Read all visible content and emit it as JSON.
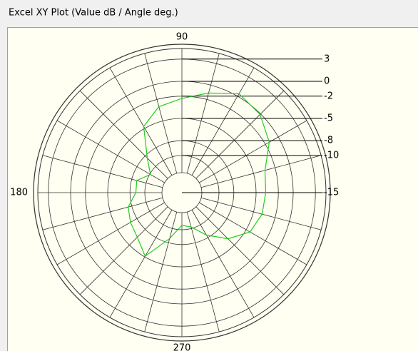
{
  "chart_data": {
    "type": "polar",
    "title": "Excel XY Plot (Value dB / Angle deg.)",
    "theta": [
      0,
      15,
      30,
      45,
      60,
      75,
      90,
      105,
      120,
      135,
      150,
      165,
      180,
      195,
      210,
      225,
      240,
      255,
      270,
      285,
      300,
      315,
      330,
      345
    ],
    "values": [
      -3.7,
      -3.4,
      -1.4,
      -0.1,
      0.4,
      -1.1,
      -2.3,
      -3,
      -4.7,
      -8.4,
      -10.1,
      -8.7,
      -8.8,
      -7.5,
      -7,
      -6.5,
      -5.1,
      -8.6,
      -10.6,
      -10.2,
      -8.4,
      -6.2,
      -4.4,
      -3.8
    ],
    "color": "#22cc22",
    "rlim": [
      -15,
      5
    ],
    "rticks": [
      3,
      0,
      -2,
      -5,
      -8,
      -10,
      -15
    ],
    "thetaticks": [
      90,
      180,
      270
    ]
  }
}
